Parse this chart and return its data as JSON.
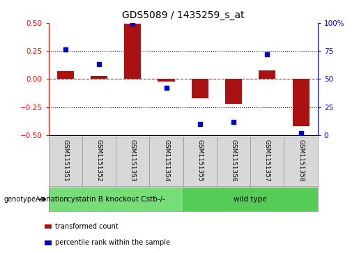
{
  "title": "GDS5089 / 1435259_s_at",
  "samples": [
    "GSM1151351",
    "GSM1151352",
    "GSM1151353",
    "GSM1151354",
    "GSM1151355",
    "GSM1151356",
    "GSM1151357",
    "GSM1151358"
  ],
  "red_bars": [
    0.07,
    0.03,
    0.49,
    -0.02,
    -0.17,
    -0.22,
    0.08,
    -0.42
  ],
  "blue_dots": [
    76,
    63,
    99,
    42,
    10,
    12,
    72,
    2
  ],
  "ylim_left": [
    -0.5,
    0.5
  ],
  "ylim_right": [
    0,
    100
  ],
  "yticks_left": [
    -0.5,
    -0.25,
    0.0,
    0.25,
    0.5
  ],
  "yticks_right": [
    0,
    25,
    50,
    75,
    100
  ],
  "hlines_y": [
    0.25,
    0.0,
    -0.25
  ],
  "hline_styles": [
    "dotted",
    "dashed",
    "dotted"
  ],
  "hline_colors": [
    "black",
    "red",
    "black"
  ],
  "bar_color": "#aa1111",
  "dot_color": "#0000cc",
  "bar_width": 0.5,
  "n_group1": 4,
  "n_group2": 4,
  "group1_label": "cystatin B knockout Cstb-/-",
  "group2_label": "wild type",
  "group1_color": "#77dd77",
  "group2_color": "#55cc55",
  "genotype_label": "genotype/variation",
  "legend_red": "transformed count",
  "legend_blue": "percentile rank within the sample",
  "bg_color": "#d8d8d8",
  "plot_bg": "#ffffff",
  "title_fontsize": 10,
  "tick_fontsize": 7.5,
  "sample_fontsize": 6.5
}
